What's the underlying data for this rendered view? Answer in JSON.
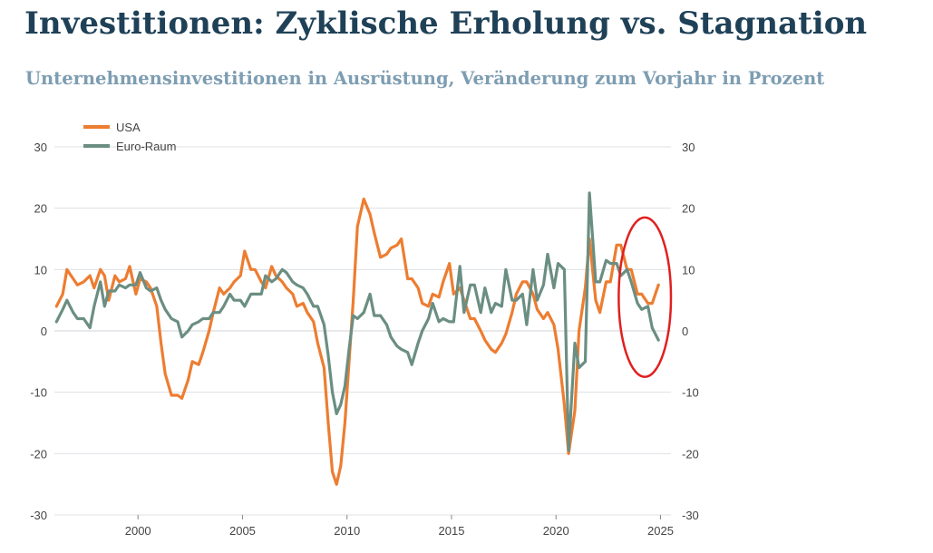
{
  "title": "Investitionen: Zyklische Erholung vs. Stagnation",
  "subtitle": "Unternehmensinvestitionen in Ausrüstung, Veränderung zum Vorjahr in Prozent",
  "colors": {
    "usa": "#ed7d31",
    "euro": "#6b8e82",
    "highlight": "#e0201f",
    "grid": "#dde0e6",
    "title": "#1f4157",
    "subtitle": "#7d9db2"
  },
  "chart_data": {
    "type": "line",
    "xlim": [
      1996.0,
      2025.5
    ],
    "ylim": [
      -30,
      30
    ],
    "x_ticks": [
      2000,
      2005,
      2010,
      2015,
      2020,
      2025
    ],
    "y_ticks": [
      -30,
      -20,
      -10,
      0,
      10,
      20,
      30
    ],
    "grid": true,
    "legend_position": "top-left",
    "highlight": {
      "shape": "ellipse",
      "x_range": [
        2023.0,
        2025.5
      ],
      "y_range": [
        -7.5,
        18.5
      ]
    },
    "series": [
      {
        "name": "USA",
        "color": "#ed7d31",
        "points": [
          [
            1996.1,
            4
          ],
          [
            1996.4,
            6
          ],
          [
            1996.6,
            10
          ],
          [
            1996.9,
            8.5
          ],
          [
            1997.1,
            7.5
          ],
          [
            1997.4,
            8
          ],
          [
            1997.7,
            9
          ],
          [
            1997.9,
            7
          ],
          [
            1998.2,
            10
          ],
          [
            1998.4,
            9
          ],
          [
            1998.6,
            5
          ],
          [
            1998.9,
            9
          ],
          [
            1999.1,
            8
          ],
          [
            1999.4,
            8.5
          ],
          [
            1999.6,
            10.5
          ],
          [
            1999.9,
            6
          ],
          [
            2000.1,
            8.5
          ],
          [
            2000.4,
            8
          ],
          [
            2000.6,
            7
          ],
          [
            2000.9,
            4
          ],
          [
            2001.1,
            -2
          ],
          [
            2001.3,
            -7
          ],
          [
            2001.6,
            -10.5
          ],
          [
            2001.9,
            -10.5
          ],
          [
            2002.1,
            -11
          ],
          [
            2002.4,
            -8
          ],
          [
            2002.6,
            -5
          ],
          [
            2002.9,
            -5.5
          ],
          [
            2003.1,
            -3.5
          ],
          [
            2003.4,
            0
          ],
          [
            2003.6,
            3
          ],
          [
            2003.9,
            7
          ],
          [
            2004.1,
            6
          ],
          [
            2004.4,
            7
          ],
          [
            2004.6,
            8
          ],
          [
            2004.9,
            9
          ],
          [
            2005.1,
            13
          ],
          [
            2005.4,
            10
          ],
          [
            2005.6,
            10
          ],
          [
            2005.9,
            8
          ],
          [
            2006.1,
            7
          ],
          [
            2006.4,
            10.5
          ],
          [
            2006.6,
            9
          ],
          [
            2006.9,
            8
          ],
          [
            2007.1,
            7
          ],
          [
            2007.4,
            6
          ],
          [
            2007.6,
            4
          ],
          [
            2007.9,
            4.5
          ],
          [
            2008.1,
            3
          ],
          [
            2008.4,
            1.5
          ],
          [
            2008.6,
            -2
          ],
          [
            2008.9,
            -6
          ],
          [
            2009.1,
            -15
          ],
          [
            2009.3,
            -23
          ],
          [
            2009.5,
            -25
          ],
          [
            2009.7,
            -22
          ],
          [
            2009.9,
            -15
          ],
          [
            2010.1,
            -5
          ],
          [
            2010.3,
            5
          ],
          [
            2010.5,
            17
          ],
          [
            2010.8,
            21.5
          ],
          [
            2011.1,
            19
          ],
          [
            2011.3,
            16
          ],
          [
            2011.6,
            12
          ],
          [
            2011.9,
            12.5
          ],
          [
            2012.1,
            13.5
          ],
          [
            2012.4,
            14
          ],
          [
            2012.6,
            15
          ],
          [
            2012.9,
            8.5
          ],
          [
            2013.1,
            8.5
          ],
          [
            2013.4,
            7
          ],
          [
            2013.6,
            4.5
          ],
          [
            2013.9,
            4
          ],
          [
            2014.1,
            6
          ],
          [
            2014.4,
            5.5
          ],
          [
            2014.6,
            8
          ],
          [
            2014.9,
            11
          ],
          [
            2015.1,
            6
          ],
          [
            2015.4,
            7
          ],
          [
            2015.6,
            5
          ],
          [
            2015.9,
            2
          ],
          [
            2016.1,
            2
          ],
          [
            2016.4,
            0
          ],
          [
            2016.6,
            -1.5
          ],
          [
            2016.9,
            -3
          ],
          [
            2017.1,
            -3.5
          ],
          [
            2017.4,
            -2
          ],
          [
            2017.6,
            -0.5
          ],
          [
            2017.9,
            3
          ],
          [
            2018.1,
            6
          ],
          [
            2018.4,
            8
          ],
          [
            2018.6,
            8
          ],
          [
            2018.9,
            6
          ],
          [
            2019.1,
            3.5
          ],
          [
            2019.4,
            2
          ],
          [
            2019.6,
            3
          ],
          [
            2019.9,
            1
          ],
          [
            2020.1,
            -3
          ],
          [
            2020.4,
            -12
          ],
          [
            2020.6,
            -20
          ],
          [
            2020.9,
            -13
          ],
          [
            2021.1,
            0
          ],
          [
            2021.4,
            7
          ],
          [
            2021.6,
            15
          ],
          [
            2021.9,
            5
          ],
          [
            2022.1,
            3
          ],
          [
            2022.4,
            8
          ],
          [
            2022.6,
            8
          ],
          [
            2022.9,
            14
          ],
          [
            2023.1,
            14
          ],
          [
            2023.4,
            10
          ],
          [
            2023.6,
            10
          ],
          [
            2023.9,
            6
          ],
          [
            2024.1,
            6
          ],
          [
            2024.4,
            4.5
          ],
          [
            2024.6,
            4.5
          ],
          [
            2024.9,
            7.5
          ]
        ]
      },
      {
        "name": "Euro-Raum",
        "color": "#6b8e82",
        "points": [
          [
            1996.1,
            1.5
          ],
          [
            1996.4,
            3.5
          ],
          [
            1996.6,
            5
          ],
          [
            1996.9,
            3
          ],
          [
            1997.1,
            2
          ],
          [
            1997.4,
            2
          ],
          [
            1997.7,
            0.5
          ],
          [
            1997.9,
            4
          ],
          [
            1998.2,
            8
          ],
          [
            1998.4,
            4
          ],
          [
            1998.6,
            6.5
          ],
          [
            1998.9,
            6.5
          ],
          [
            1999.1,
            7.5
          ],
          [
            1999.4,
            7
          ],
          [
            1999.6,
            7.5
          ],
          [
            1999.9,
            7.5
          ],
          [
            2000.1,
            9.5
          ],
          [
            2000.4,
            7
          ],
          [
            2000.6,
            6.5
          ],
          [
            2000.9,
            7
          ],
          [
            2001.1,
            5
          ],
          [
            2001.3,
            3.5
          ],
          [
            2001.6,
            2
          ],
          [
            2001.9,
            1.5
          ],
          [
            2002.1,
            -1
          ],
          [
            2002.4,
            0
          ],
          [
            2002.6,
            1
          ],
          [
            2002.9,
            1.5
          ],
          [
            2003.1,
            2
          ],
          [
            2003.4,
            2
          ],
          [
            2003.6,
            3
          ],
          [
            2003.9,
            3
          ],
          [
            2004.1,
            4
          ],
          [
            2004.4,
            6
          ],
          [
            2004.6,
            5
          ],
          [
            2004.9,
            5
          ],
          [
            2005.1,
            4
          ],
          [
            2005.4,
            6
          ],
          [
            2005.6,
            6
          ],
          [
            2005.9,
            6
          ],
          [
            2006.1,
            9
          ],
          [
            2006.4,
            8
          ],
          [
            2006.6,
            8.5
          ],
          [
            2006.9,
            10
          ],
          [
            2007.1,
            9.5
          ],
          [
            2007.4,
            8
          ],
          [
            2007.6,
            7.5
          ],
          [
            2007.9,
            7
          ],
          [
            2008.1,
            6
          ],
          [
            2008.4,
            4
          ],
          [
            2008.6,
            4
          ],
          [
            2008.9,
            1
          ],
          [
            2009.1,
            -4
          ],
          [
            2009.3,
            -10
          ],
          [
            2009.5,
            -13.5
          ],
          [
            2009.7,
            -12
          ],
          [
            2009.9,
            -9
          ],
          [
            2010.1,
            -3
          ],
          [
            2010.3,
            2.5
          ],
          [
            2010.5,
            2
          ],
          [
            2010.8,
            3
          ],
          [
            2011.1,
            6
          ],
          [
            2011.3,
            2.5
          ],
          [
            2011.6,
            2.5
          ],
          [
            2011.9,
            1
          ],
          [
            2012.1,
            -1
          ],
          [
            2012.4,
            -2.5
          ],
          [
            2012.6,
            -3
          ],
          [
            2012.9,
            -3.5
          ],
          [
            2013.1,
            -5.5
          ],
          [
            2013.4,
            -2
          ],
          [
            2013.6,
            0
          ],
          [
            2013.9,
            2
          ],
          [
            2014.1,
            4.5
          ],
          [
            2014.4,
            1.5
          ],
          [
            2014.6,
            2
          ],
          [
            2014.9,
            1.5
          ],
          [
            2015.1,
            1.5
          ],
          [
            2015.4,
            10.5
          ],
          [
            2015.6,
            3
          ],
          [
            2015.9,
            7.5
          ],
          [
            2016.1,
            7.5
          ],
          [
            2016.4,
            3
          ],
          [
            2016.6,
            7
          ],
          [
            2016.9,
            3
          ],
          [
            2017.1,
            4.5
          ],
          [
            2017.4,
            4
          ],
          [
            2017.6,
            10
          ],
          [
            2017.9,
            5
          ],
          [
            2018.1,
            5
          ],
          [
            2018.4,
            6
          ],
          [
            2018.6,
            1
          ],
          [
            2018.9,
            10
          ],
          [
            2019.1,
            5
          ],
          [
            2019.4,
            7.5
          ],
          [
            2019.6,
            12.5
          ],
          [
            2019.9,
            7
          ],
          [
            2020.1,
            11
          ],
          [
            2020.4,
            10
          ],
          [
            2020.6,
            -19.5
          ],
          [
            2020.9,
            -2
          ],
          [
            2021.1,
            -6
          ],
          [
            2021.4,
            -5
          ],
          [
            2021.6,
            22.5
          ],
          [
            2021.9,
            8
          ],
          [
            2022.1,
            8
          ],
          [
            2022.4,
            11.5
          ],
          [
            2022.6,
            11
          ],
          [
            2022.9,
            11
          ],
          [
            2023.1,
            9
          ],
          [
            2023.4,
            10
          ],
          [
            2023.6,
            8
          ],
          [
            2023.9,
            4.5
          ],
          [
            2024.1,
            3.5
          ],
          [
            2024.4,
            4
          ],
          [
            2024.6,
            0.5
          ],
          [
            2024.9,
            -1.5
          ]
        ]
      }
    ]
  }
}
